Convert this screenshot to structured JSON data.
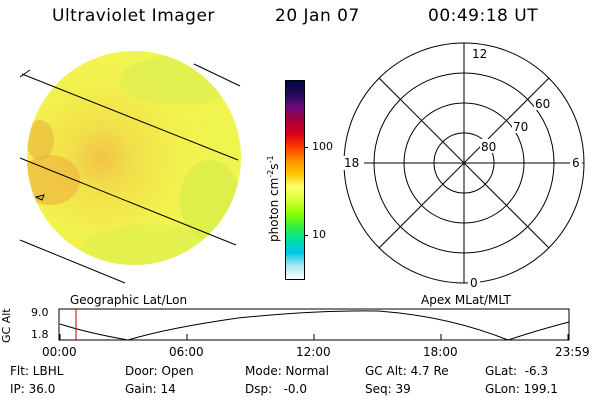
{
  "header": {
    "title": "Ultraviolet Imager",
    "date": "20 Jan 07",
    "time": "00:49:18 UT"
  },
  "colorbar": {
    "unit_main": "photon cm",
    "unit_exp1": "-2",
    "unit_mid": "s",
    "unit_exp2": "-1",
    "tick_100": "100",
    "tick_10": "10",
    "colors": [
      "#000a3c",
      "#220a5a",
      "#6a0a7a",
      "#a8003c",
      "#d8001a",
      "#ff3a00",
      "#ff8c00",
      "#ffc400",
      "#ffff66",
      "#d8ff3a",
      "#8cff00",
      "#38f038",
      "#00e0a0",
      "#00c8e6",
      "#a8e8f0",
      "#ffffff"
    ]
  },
  "polar": {
    "labels": {
      "top": "12",
      "left": "18",
      "right": "6",
      "bottom": "0",
      "lat60": "60",
      "lat70": "70",
      "lat80": "80"
    }
  },
  "timeline": {
    "left_caption": "Geographic Lat/Lon",
    "right_caption": "Apex MLat/MLT",
    "axis_title": "GC Alt",
    "y_max": "9.0",
    "y_min": "1.8",
    "ticks": [
      "00:00",
      "06:00",
      "12:00",
      "18:00",
      "23:59"
    ]
  },
  "info": {
    "flt": "Flt: LBHL",
    "door": "Door: Open",
    "mode": "Mode: Normal",
    "gc_alt": "GC Alt: 4.7 Re",
    "glat": "GLat:  -6.3",
    "ip": "IP: 36.0",
    "gain": "Gain: 14",
    "dsp": "Dsp:   -0.0",
    "seq": "Seq: 39",
    "glon": "GLon: 199.1"
  }
}
